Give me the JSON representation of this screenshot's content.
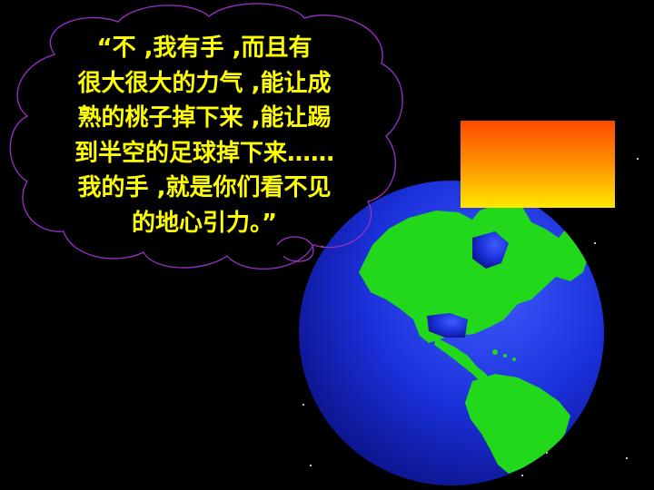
{
  "thought_bubble": {
    "lines": [
      "“不 ,我有手 ,而且有",
      "很大很大的力气 ,能让成",
      "熟的桃子掉下来 ,能让踢",
      "到半空的足球掉下来……",
      "我的手 ,就是你们看不见",
      "的地心引力。”"
    ],
    "text_color": "#FFFF00",
    "outline_color": "#9B30C8"
  },
  "colors": {
    "background": "#000000",
    "ocean": "#1A2FD8",
    "land": "#22D81A",
    "gradient_top": "#FF4800",
    "gradient_bottom": "#FFE800"
  }
}
